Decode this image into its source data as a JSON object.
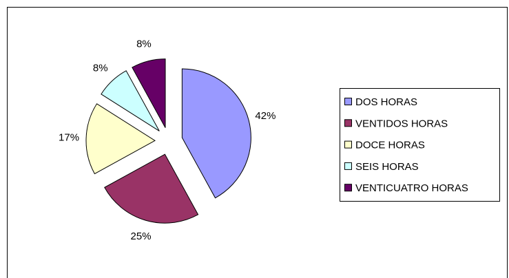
{
  "chart_data": {
    "type": "pie",
    "categories": [
      "DOS HORAS",
      "VENTIDOS HORAS",
      "DOCE HORAS",
      "SEIS HORAS",
      "VENTICUATRO HORAS"
    ],
    "values": [
      42,
      25,
      17,
      8,
      8
    ],
    "value_labels": [
      "42%",
      "25%",
      "17%",
      "8%",
      "8%"
    ],
    "colors": [
      "#9999ff",
      "#993366",
      "#ffffcc",
      "#ccffff",
      "#660066"
    ],
    "legend": "right"
  }
}
